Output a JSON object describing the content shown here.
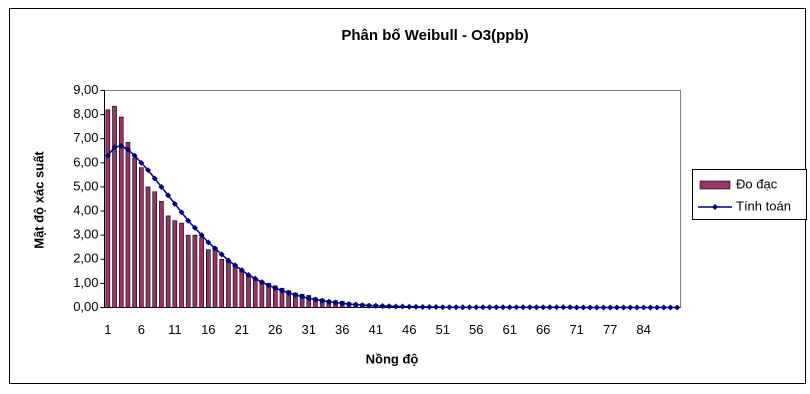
{
  "chart_data": {
    "type": "bar",
    "title": "Phân bố Weibull - O3(ppb)",
    "x_label": "Nồng độ",
    "y_label": "Mật độ xác suất",
    "categories": [
      1,
      null,
      null,
      null,
      null,
      6,
      null,
      null,
      null,
      null,
      11,
      null,
      null,
      null,
      null,
      16,
      null,
      null,
      null,
      null,
      21,
      null,
      null,
      null,
      null,
      26,
      null,
      null,
      null,
      null,
      31,
      null,
      null,
      null,
      null,
      36,
      null,
      null,
      null,
      null,
      41,
      null,
      null,
      null,
      null,
      46,
      null,
      null,
      null,
      null,
      51,
      null,
      null,
      null,
      null,
      56,
      null,
      null,
      null,
      null,
      61,
      null,
      null,
      null,
      null,
      66,
      null,
      null,
      null,
      null,
      71,
      null,
      null,
      null,
      null,
      77,
      null,
      null,
      null,
      null,
      84,
      null,
      null,
      null,
      null,
      null
    ],
    "series": [
      {
        "name": "Đo đạc",
        "type": "bar",
        "color": "#993366",
        "values": [
          8.2,
          8.35,
          7.9,
          6.85,
          6.2,
          5.8,
          5.0,
          4.8,
          4.4,
          3.8,
          3.6,
          3.5,
          3.0,
          3.0,
          2.9,
          2.4,
          2.5,
          2.0,
          1.9,
          1.7,
          1.5,
          1.3,
          1.2,
          1.1,
          1.0,
          0.9,
          0.8,
          0.7,
          0.6,
          0.55,
          0.5,
          0.4,
          0.35,
          0.3,
          0.28,
          0.25,
          0.2,
          0.18,
          0.15,
          0.14,
          0.12,
          0.1,
          0.1,
          0.08,
          0.07,
          0.06,
          0.05,
          0.05,
          0.04,
          0.04,
          0.03,
          0.03,
          0.03,
          0.03,
          0.02,
          0.02,
          0.02,
          0.02,
          0.02,
          0.02,
          0.02,
          0.02,
          0.02,
          0.02,
          0.02,
          0.02,
          0.02,
          0.02,
          0.02,
          0.02,
          0.02,
          0.02,
          0.02,
          0.02,
          0.02,
          0.02,
          0.02,
          0.02,
          0.02,
          0.02,
          0.02,
          0.02,
          0.02,
          0.02,
          0.02,
          0.02
        ]
      },
      {
        "name": "Tính toán",
        "type": "line",
        "color": "#000080",
        "values": [
          6.3,
          6.65,
          6.7,
          6.55,
          6.3,
          6.0,
          5.7,
          5.35,
          5.0,
          4.65,
          4.3,
          3.95,
          3.6,
          3.3,
          3.0,
          2.7,
          2.45,
          2.2,
          1.95,
          1.75,
          1.55,
          1.35,
          1.2,
          1.05,
          0.92,
          0.8,
          0.7,
          0.6,
          0.52,
          0.45,
          0.38,
          0.33,
          0.28,
          0.24,
          0.2,
          0.17,
          0.14,
          0.12,
          0.1,
          0.08,
          0.07,
          0.06,
          0.05,
          0.04,
          0.04,
          0.03,
          0.03,
          0.02,
          0.02,
          0.02,
          0.01,
          0.01,
          0.01,
          0.01,
          0.01,
          0.01,
          0.01,
          0.01,
          0.01,
          0.01,
          0.01,
          0.01,
          0.01,
          0.01,
          0.01,
          0.01,
          0.01,
          0.01,
          0.01,
          0.01,
          0,
          0,
          0,
          0,
          0,
          0,
          0,
          0,
          0,
          0,
          0,
          0,
          0,
          0,
          0,
          0
        ]
      }
    ],
    "ylim": [
      0,
      9
    ],
    "yticks": [
      {
        "value": 0,
        "label": "0,00"
      },
      {
        "value": 1,
        "label": "1,00"
      },
      {
        "value": 2,
        "label": "2,00"
      },
      {
        "value": 3,
        "label": "3,00"
      },
      {
        "value": 4,
        "label": "4,00"
      },
      {
        "value": 5,
        "label": "5,00"
      },
      {
        "value": 6,
        "label": "6,00"
      },
      {
        "value": 7,
        "label": "7,00"
      },
      {
        "value": 8,
        "label": "8,00"
      },
      {
        "value": 9,
        "label": "9,00"
      }
    ],
    "legend": "right"
  }
}
